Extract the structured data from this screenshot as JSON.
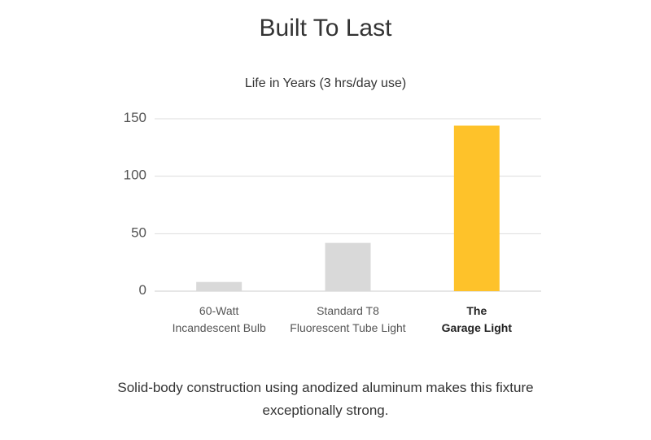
{
  "page": {
    "heading": "Built To Last",
    "caption": "Solid-body construction using anodized aluminum makes this fixture exceptionally strong."
  },
  "chart_data": {
    "type": "bar",
    "title": "Life in Years (3 hrs/day use)",
    "categories": [
      [
        "60-Watt",
        "Incandescent Bulb"
      ],
      [
        "Standard T8",
        "Fluorescent Tube Light"
      ],
      [
        "The",
        "Garage Light"
      ]
    ],
    "values": [
      8,
      42,
      144
    ],
    "highlight_index": 2,
    "ylim": [
      0,
      150
    ],
    "yticks": [
      0,
      50,
      100,
      150
    ],
    "grid": true,
    "xlabel": "",
    "ylabel": "",
    "colors": {
      "default_bar": "#d9d9d9",
      "highlight_bar": "#fec22a",
      "grid": "#dddddd",
      "baseline": "#cccccc"
    }
  }
}
